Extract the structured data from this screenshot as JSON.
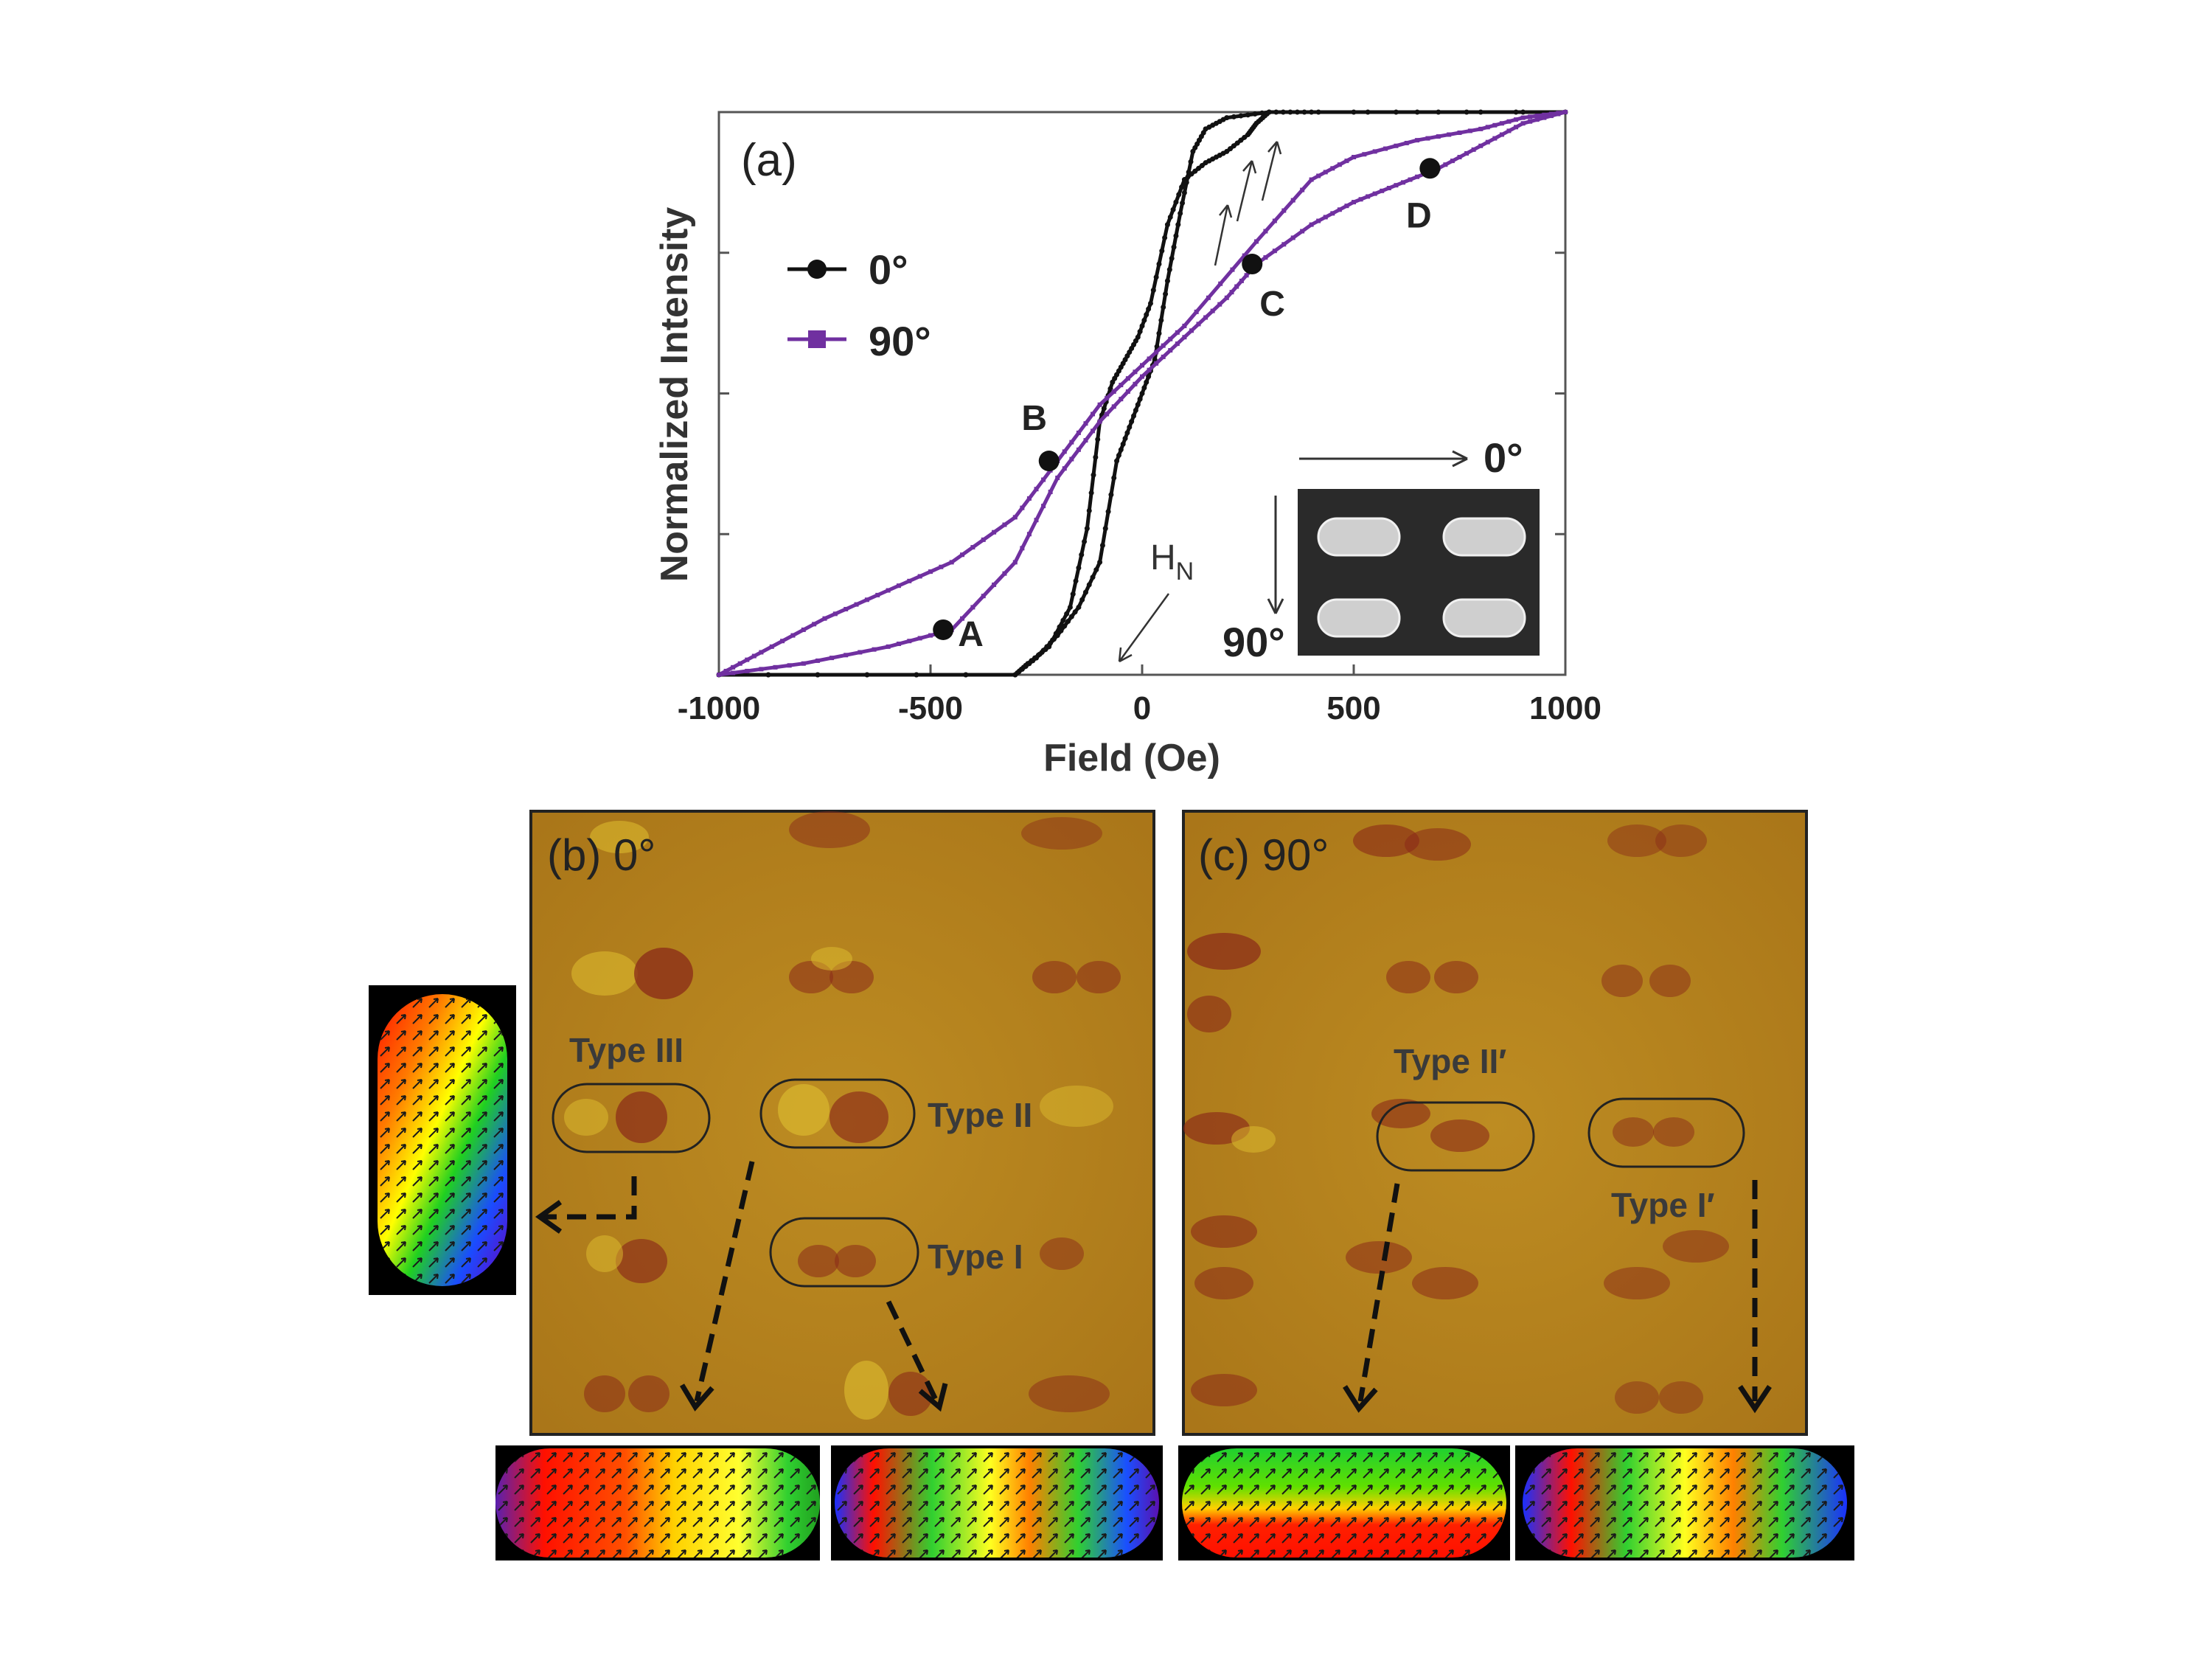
{
  "chart_data": {
    "type": "line",
    "panel_label": "(a)",
    "xlabel": "Field (Oe)",
    "ylabel": "Normalized Intensity",
    "xlim": [
      -1000,
      1000
    ],
    "ylim": [
      0,
      1
    ],
    "x_ticks": [
      -1000,
      -500,
      0,
      500,
      1000
    ],
    "x_tick_labels": [
      "-1000",
      "-500",
      "0",
      "500",
      "1000"
    ],
    "y_ticks": [
      0.25,
      0.5,
      0.75
    ],
    "grid": false,
    "legend": {
      "placement": "upper-left",
      "entries": [
        "0°",
        "90°"
      ]
    },
    "series": [
      {
        "name": "0°",
        "color": "#111111",
        "marker": "circle",
        "branches": [
          {
            "x": [
              -1000,
              -300,
              -270,
              -220,
              -170,
              -130,
              -100,
              -70,
              -40,
              -10,
              20,
              60,
              100,
              150,
              200,
              250,
              270,
              300,
              400,
              1000
            ],
            "y": [
              0.0,
              0.0,
              0.02,
              0.05,
              0.12,
              0.26,
              0.45,
              0.52,
              0.56,
              0.6,
              0.66,
              0.8,
              0.88,
              0.91,
              0.93,
              0.96,
              0.98,
              1.0,
              1.0,
              1.0
            ]
          },
          {
            "x": [
              1000,
              300,
              200,
              150,
              120,
              90,
              60,
              30,
              0,
              -30,
              -60,
              -100,
              -150,
              -200,
              -250,
              -300,
              -1000
            ],
            "y": [
              1.0,
              1.0,
              0.99,
              0.97,
              0.93,
              0.82,
              0.7,
              0.56,
              0.5,
              0.44,
              0.38,
              0.2,
              0.12,
              0.07,
              0.03,
              0.0,
              0.0
            ]
          }
        ]
      },
      {
        "name": "90°",
        "color": "#7030A0",
        "marker": "square",
        "branches": [
          {
            "x": [
              -1000,
              -800,
              -600,
              -450,
              -300,
              -200,
              -100,
              0,
              100,
              200,
              270,
              400,
              500,
              600,
              700,
              800,
              900,
              1000
            ],
            "y": [
              0.0,
              0.02,
              0.05,
              0.08,
              0.2,
              0.35,
              0.45,
              0.53,
              0.6,
              0.67,
              0.73,
              0.8,
              0.84,
              0.87,
              0.9,
              0.94,
              0.98,
              1.0
            ]
          },
          {
            "x": [
              1000,
              900,
              800,
              650,
              500,
              400,
              270,
              100,
              0,
              -100,
              -200,
              -300,
              -450,
              -600,
              -750,
              -900,
              -1000
            ],
            "y": [
              1.0,
              0.99,
              0.97,
              0.95,
              0.92,
              0.88,
              0.77,
              0.62,
              0.55,
              0.48,
              0.38,
              0.28,
              0.2,
              0.15,
              0.1,
              0.04,
              0.0
            ]
          }
        ]
      }
    ],
    "points": [
      {
        "label": "A",
        "x": -470,
        "y": 0.08
      },
      {
        "label": "B",
        "x": -220,
        "y": 0.38
      },
      {
        "label": "C",
        "x": 260,
        "y": 0.73
      },
      {
        "label": "D",
        "x": 680,
        "y": 0.9
      }
    ],
    "annotations": {
      "hn_label": "H",
      "hn_sub": "N",
      "inset_0": "0°",
      "inset_90": "90°"
    }
  },
  "panels": {
    "b": {
      "label": "(b) 0°",
      "types": [
        "Type III",
        "Type II",
        "Type I"
      ]
    },
    "c": {
      "label": "(c) 90°",
      "types": [
        "Type II′",
        "Type I′"
      ]
    }
  },
  "colors": {
    "mfm_background": "#b8861e",
    "dark_domain": "#8a2a18",
    "bright_domain": "#e0c030",
    "curve_0": "#111111",
    "curve_90": "#7030A0"
  }
}
